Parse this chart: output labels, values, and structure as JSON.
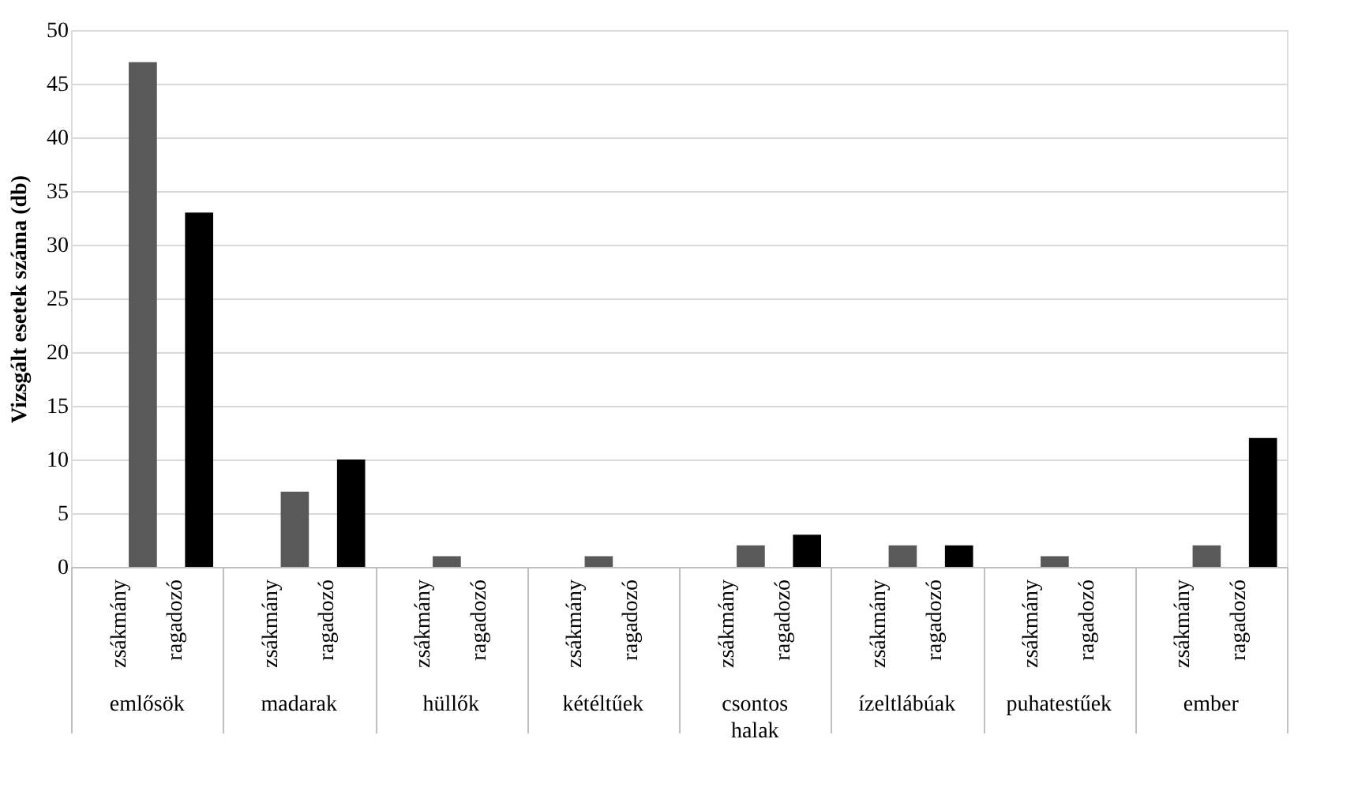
{
  "chart_data": {
    "type": "bar",
    "ylabel": "Vizsgált esetek száma (db)",
    "categories": [
      "emlősök",
      "madarak",
      "hüllők",
      "kétéltűek",
      "csontos halak",
      "ízeltlábúak",
      "puhatestűek",
      "ember"
    ],
    "series": [
      {
        "name": "zsákmány",
        "color": "#595959",
        "values": [
          47,
          7,
          1,
          1,
          2,
          2,
          1,
          2
        ]
      },
      {
        "name": "ragadozó",
        "color": "#000000",
        "values": [
          33,
          10,
          0,
          0,
          3,
          2,
          0,
          12
        ]
      }
    ],
    "ylim": [
      0,
      50
    ],
    "yticks": [
      0,
      5,
      10,
      15,
      20,
      25,
      30,
      35,
      40,
      45,
      50
    ],
    "grid": "y",
    "legend": false
  }
}
